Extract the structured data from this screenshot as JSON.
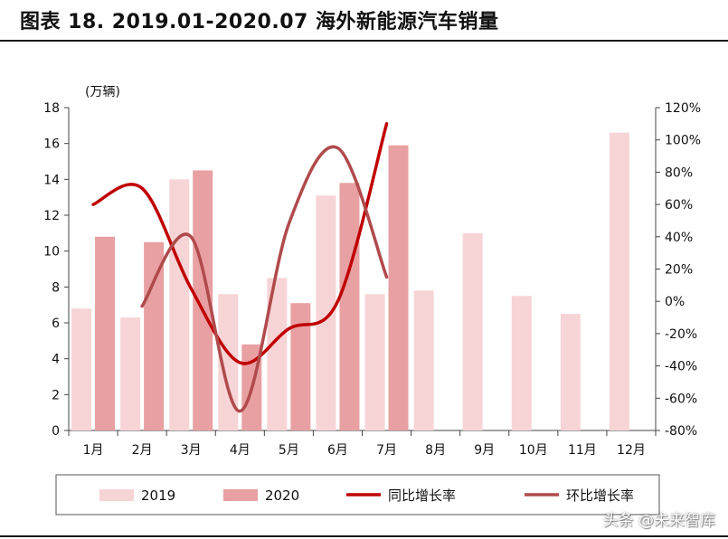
{
  "title": "图表 18. 2019.01-2020.07 海外新能源汽车销量",
  "watermark": "头条 @未来智库",
  "chart_data": {
    "type": "bar",
    "categories": [
      "1月",
      "2月",
      "3月",
      "4月",
      "5月",
      "6月",
      "7月",
      "8月",
      "9月",
      "10月",
      "11月",
      "12月"
    ],
    "series": [
      {
        "name": "2019",
        "type": "bar",
        "axis": "left",
        "color": "#f7d4d6",
        "values": [
          6.8,
          6.3,
          14.0,
          7.6,
          8.5,
          13.1,
          7.6,
          7.8,
          11.0,
          7.5,
          6.5,
          16.6
        ]
      },
      {
        "name": "2020",
        "type": "bar",
        "axis": "left",
        "color": "#e8a0a2",
        "values": [
          10.8,
          10.5,
          14.5,
          4.8,
          7.1,
          13.8,
          15.9,
          null,
          null,
          null,
          null,
          null
        ]
      },
      {
        "name": "同比增长率",
        "type": "line",
        "axis": "right",
        "color": "#c00000",
        "values": [
          60,
          70,
          8,
          -38,
          -17,
          0,
          110,
          null,
          null,
          null,
          null,
          null
        ]
      },
      {
        "name": "环比增长率",
        "type": "line",
        "axis": "right",
        "color": "#b04a4c",
        "values": [
          null,
          -3,
          40,
          -68,
          48,
          95,
          15,
          null,
          null,
          null,
          null,
          null
        ]
      }
    ],
    "ylabel": "(万辆)",
    "ylim": [
      0,
      18
    ],
    "yticks": [
      0,
      2,
      4,
      6,
      8,
      10,
      12,
      14,
      16,
      18
    ],
    "y2lim": [
      -80,
      120
    ],
    "y2ticks": [
      "-80%",
      "-60%",
      "-40%",
      "-20%",
      "0%",
      "20%",
      "40%",
      "60%",
      "80%",
      "100%",
      "120%"
    ],
    "grid": false,
    "legend_position": "bottom"
  }
}
